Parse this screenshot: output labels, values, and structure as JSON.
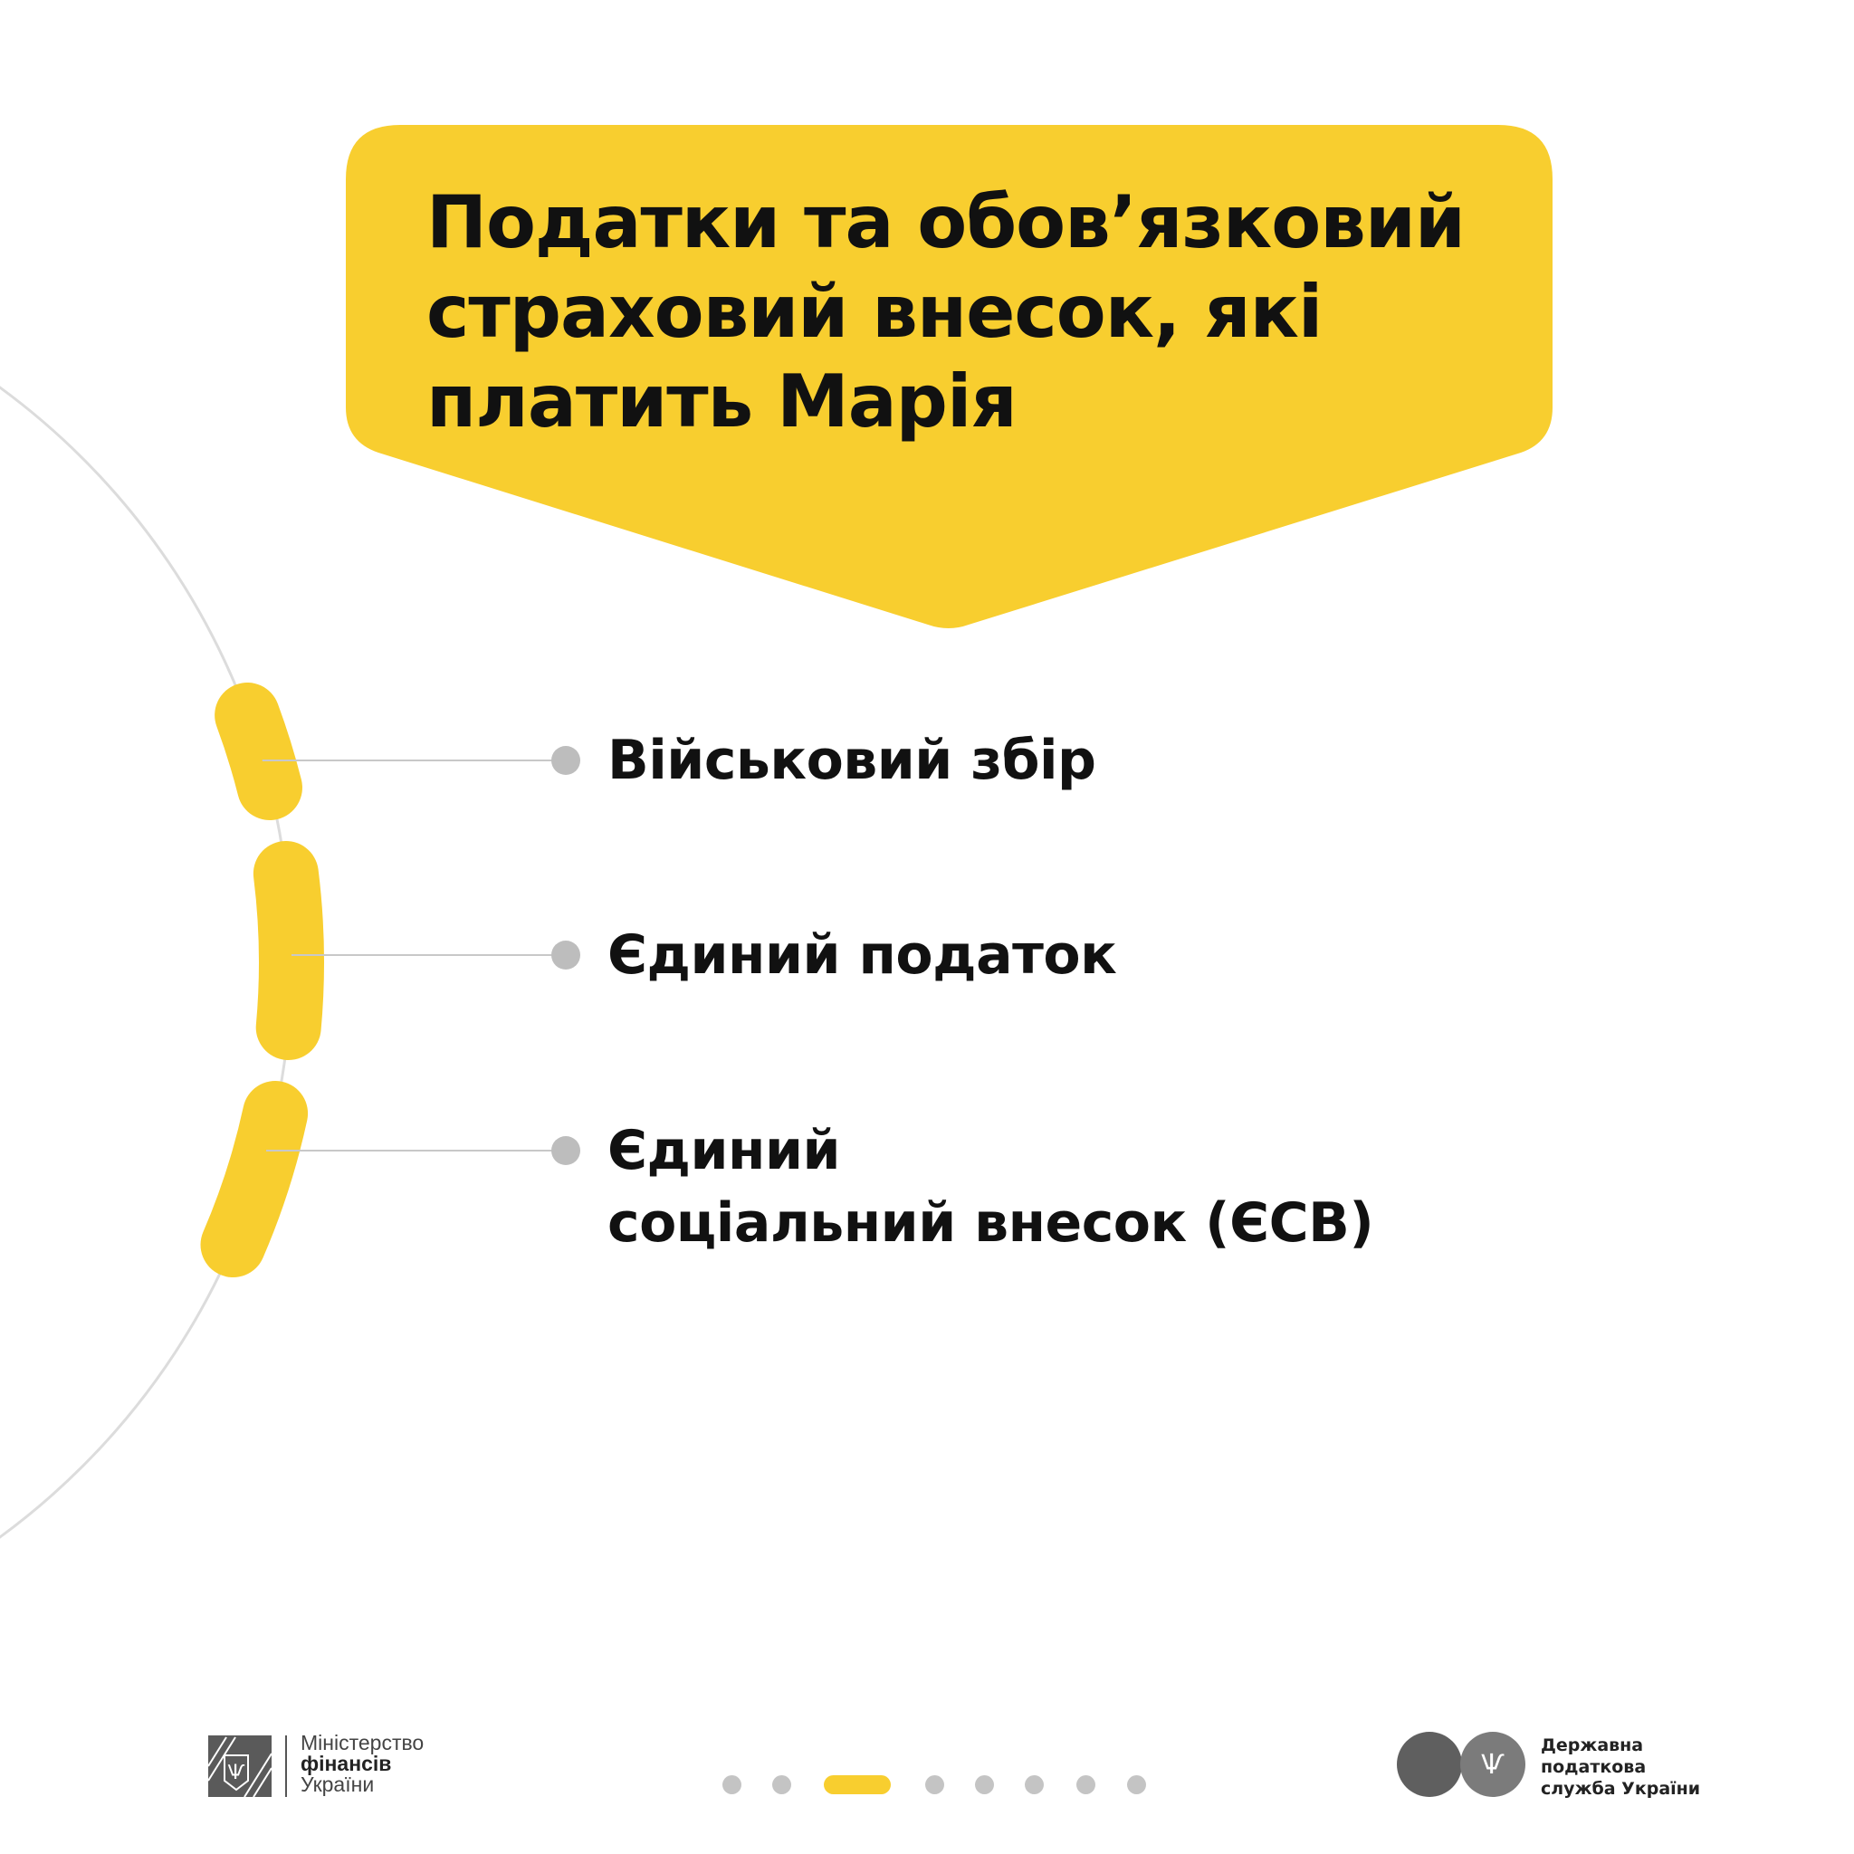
{
  "title": "Податки та обов’язковий\nстраховий внесок, які\nплатить Марія",
  "items": [
    {
      "label": "Військовий збір"
    },
    {
      "label": "Єдиний податок"
    },
    {
      "label": "Єдиний\nсоціальний внесок (ЄСВ)"
    }
  ],
  "footer": {
    "ministry": {
      "line1": "Міністерство",
      "line2": "фінансів",
      "line3": "України"
    },
    "tax_service": {
      "line1": "Державна",
      "line2": "податкова",
      "line3": "служба України"
    },
    "pagination": {
      "total": 8,
      "active": 3
    }
  },
  "colors": {
    "accent": "#F8CE2F",
    "arc": "#DCDCDC",
    "dot": "#BDBDBD",
    "text": "#111111"
  }
}
